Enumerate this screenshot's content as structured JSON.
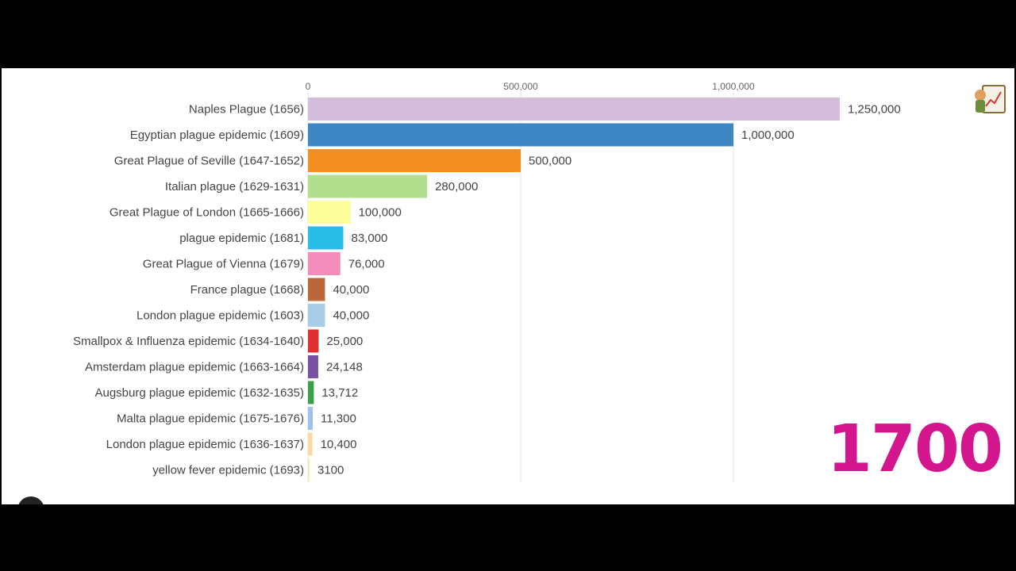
{
  "year_label": "1700",
  "logo": {
    "icon": "chart-logo-icon"
  },
  "chart_data": {
    "type": "bar",
    "orientation": "horizontal",
    "title": "",
    "xlim": [
      0,
      1250000
    ],
    "x_ticks": [
      {
        "value": 0,
        "label": "0"
      },
      {
        "value": 500000,
        "label": "500,000"
      },
      {
        "value": 1000000,
        "label": "1,000,000"
      }
    ],
    "grid": true,
    "bars": [
      {
        "label": "Naples Plague (1656)",
        "value": 1250000,
        "value_label": "1,250,000",
        "color": "#d5bddc"
      },
      {
        "label": "Egyptian plague epidemic (1609)",
        "value": 1000000,
        "value_label": "1,000,000",
        "color": "#3c86c3"
      },
      {
        "label": "Great Plague of Seville (1647-1652)",
        "value": 500000,
        "value_label": "500,000",
        "color": "#f28e22"
      },
      {
        "label": "Italian plague (1629-1631)",
        "value": 280000,
        "value_label": "280,000",
        "color": "#b3de8e"
      },
      {
        "label": "Great Plague of London (1665-1666)",
        "value": 100000,
        "value_label": "100,000",
        "color": "#fdfd9a"
      },
      {
        "label": "plague epidemic (1681)",
        "value": 83000,
        "value_label": "83,000",
        "color": "#27bde6"
      },
      {
        "label": "Great Plague of Vienna (1679)",
        "value": 76000,
        "value_label": "76,000",
        "color": "#f28cb9"
      },
      {
        "label": "France plague (1668)",
        "value": 40000,
        "value_label": "40,000",
        "color": "#b9683b"
      },
      {
        "label": "London plague epidemic (1603)",
        "value": 40000,
        "value_label": "40,000",
        "color": "#a9cde9"
      },
      {
        "label": "Smallpox & Influenza epidemic (1634-1640)",
        "value": 25000,
        "value_label": "25,000",
        "color": "#e12e2f"
      },
      {
        "label": "Amsterdam plague epidemic (1663-1664)",
        "value": 24148,
        "value_label": "24,148",
        "color": "#7a50a4"
      },
      {
        "label": "Augsburg plague epidemic (1632-1635)",
        "value": 13712,
        "value_label": "13,712",
        "color": "#3aa146"
      },
      {
        "label": "Malta plague epidemic (1675-1676)",
        "value": 11300,
        "value_label": "11,300",
        "color": "#9ec0ec"
      },
      {
        "label": "London plague epidemic (1636-1637)",
        "value": 10400,
        "value_label": "10,400",
        "color": "#fcd7a4"
      },
      {
        "label": "yellow fever epidemic (1693)",
        "value": 3100,
        "value_label": "3100",
        "color": "#fae7b2"
      }
    ]
  }
}
